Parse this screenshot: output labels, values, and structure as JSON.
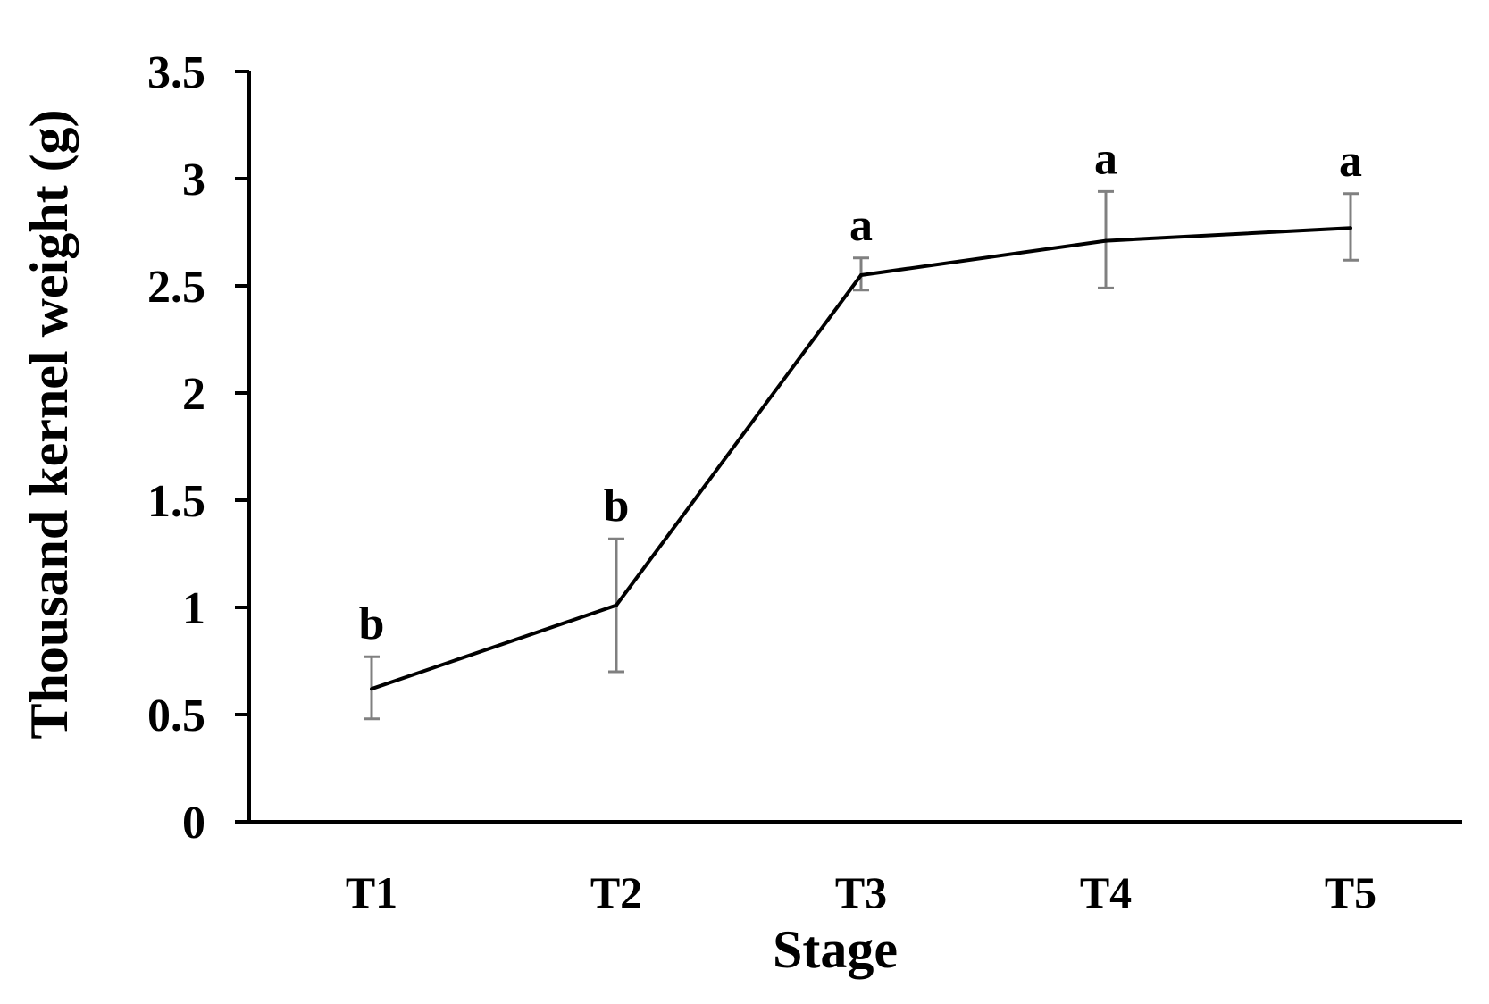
{
  "chart_data": {
    "type": "line",
    "title": "",
    "xlabel": "Stage",
    "ylabel": "Thousand kernel weight (g)",
    "categories": [
      "T1",
      "T2",
      "T3",
      "T4",
      "T5"
    ],
    "series": [
      {
        "values": [
          0.62,
          1.01,
          2.55,
          2.71,
          2.77
        ],
        "error_upper": [
          0.77,
          1.32,
          2.63,
          2.94,
          2.93
        ],
        "error_lower": [
          0.48,
          0.7,
          2.48,
          2.49,
          2.62
        ],
        "significance": [
          "b",
          "b",
          "a",
          "a",
          "a"
        ]
      }
    ],
    "ylim": [
      0,
      3.5
    ],
    "yticks": [
      0,
      0.5,
      1,
      1.5,
      2,
      2.5,
      3,
      3.5
    ],
    "ytick_labels": [
      "0",
      "0.5",
      "1",
      "1.5",
      "2",
      "2.5",
      "3",
      "3.5"
    ],
    "grid": false,
    "legend": "none",
    "colors": {
      "line": "#000000",
      "error_bars": "#808080",
      "axes": "#000000"
    }
  }
}
